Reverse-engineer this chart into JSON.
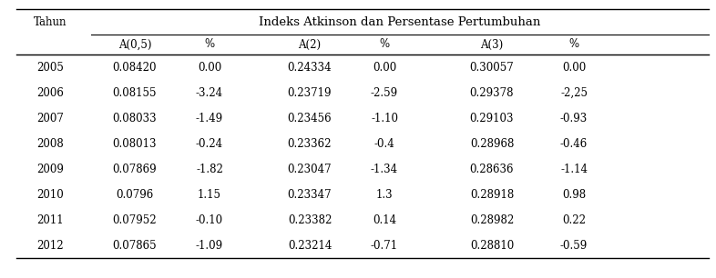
{
  "title": "Indeks Atkinson dan Persentase Pertumbuhan",
  "col_header_row2": [
    "A(0,5)",
    "%",
    "A(2)",
    "%",
    "A(3)",
    "%"
  ],
  "rows": [
    [
      "2005",
      "0.08420",
      "0.00",
      "0.24334",
      "0.00",
      "0.30057",
      "0.00"
    ],
    [
      "2006",
      "0.08155",
      "-3.24",
      "0.23719",
      "-2.59",
      "0.29378",
      "-2,25"
    ],
    [
      "2007",
      "0.08033",
      "-1.49",
      "0.23456",
      "-1.10",
      "0.29103",
      "-0.93"
    ],
    [
      "2008",
      "0.08013",
      "-0.24",
      "0.23362",
      "-0.4",
      "0.28968",
      "-0.46"
    ],
    [
      "2009",
      "0.07869",
      "-1.82",
      "0.23047",
      "-1.34",
      "0.28636",
      "-1.14"
    ],
    [
      "2010",
      "0.0796",
      "1.15",
      "0.23347",
      "1.3",
      "0.28918",
      "0.98"
    ],
    [
      "2011",
      "0.07952",
      "-0.10",
      "0.23382",
      "0.14",
      "0.28982",
      "0.22"
    ],
    [
      "2012",
      "0.07865",
      "-1.09",
      "0.23214",
      "-0.71",
      "0.28810",
      "-0.59"
    ]
  ],
  "background_color": "#ffffff",
  "text_color": "#000000",
  "font_size": 8.5,
  "header_font_size": 8.5,
  "title_font_size": 9.5
}
